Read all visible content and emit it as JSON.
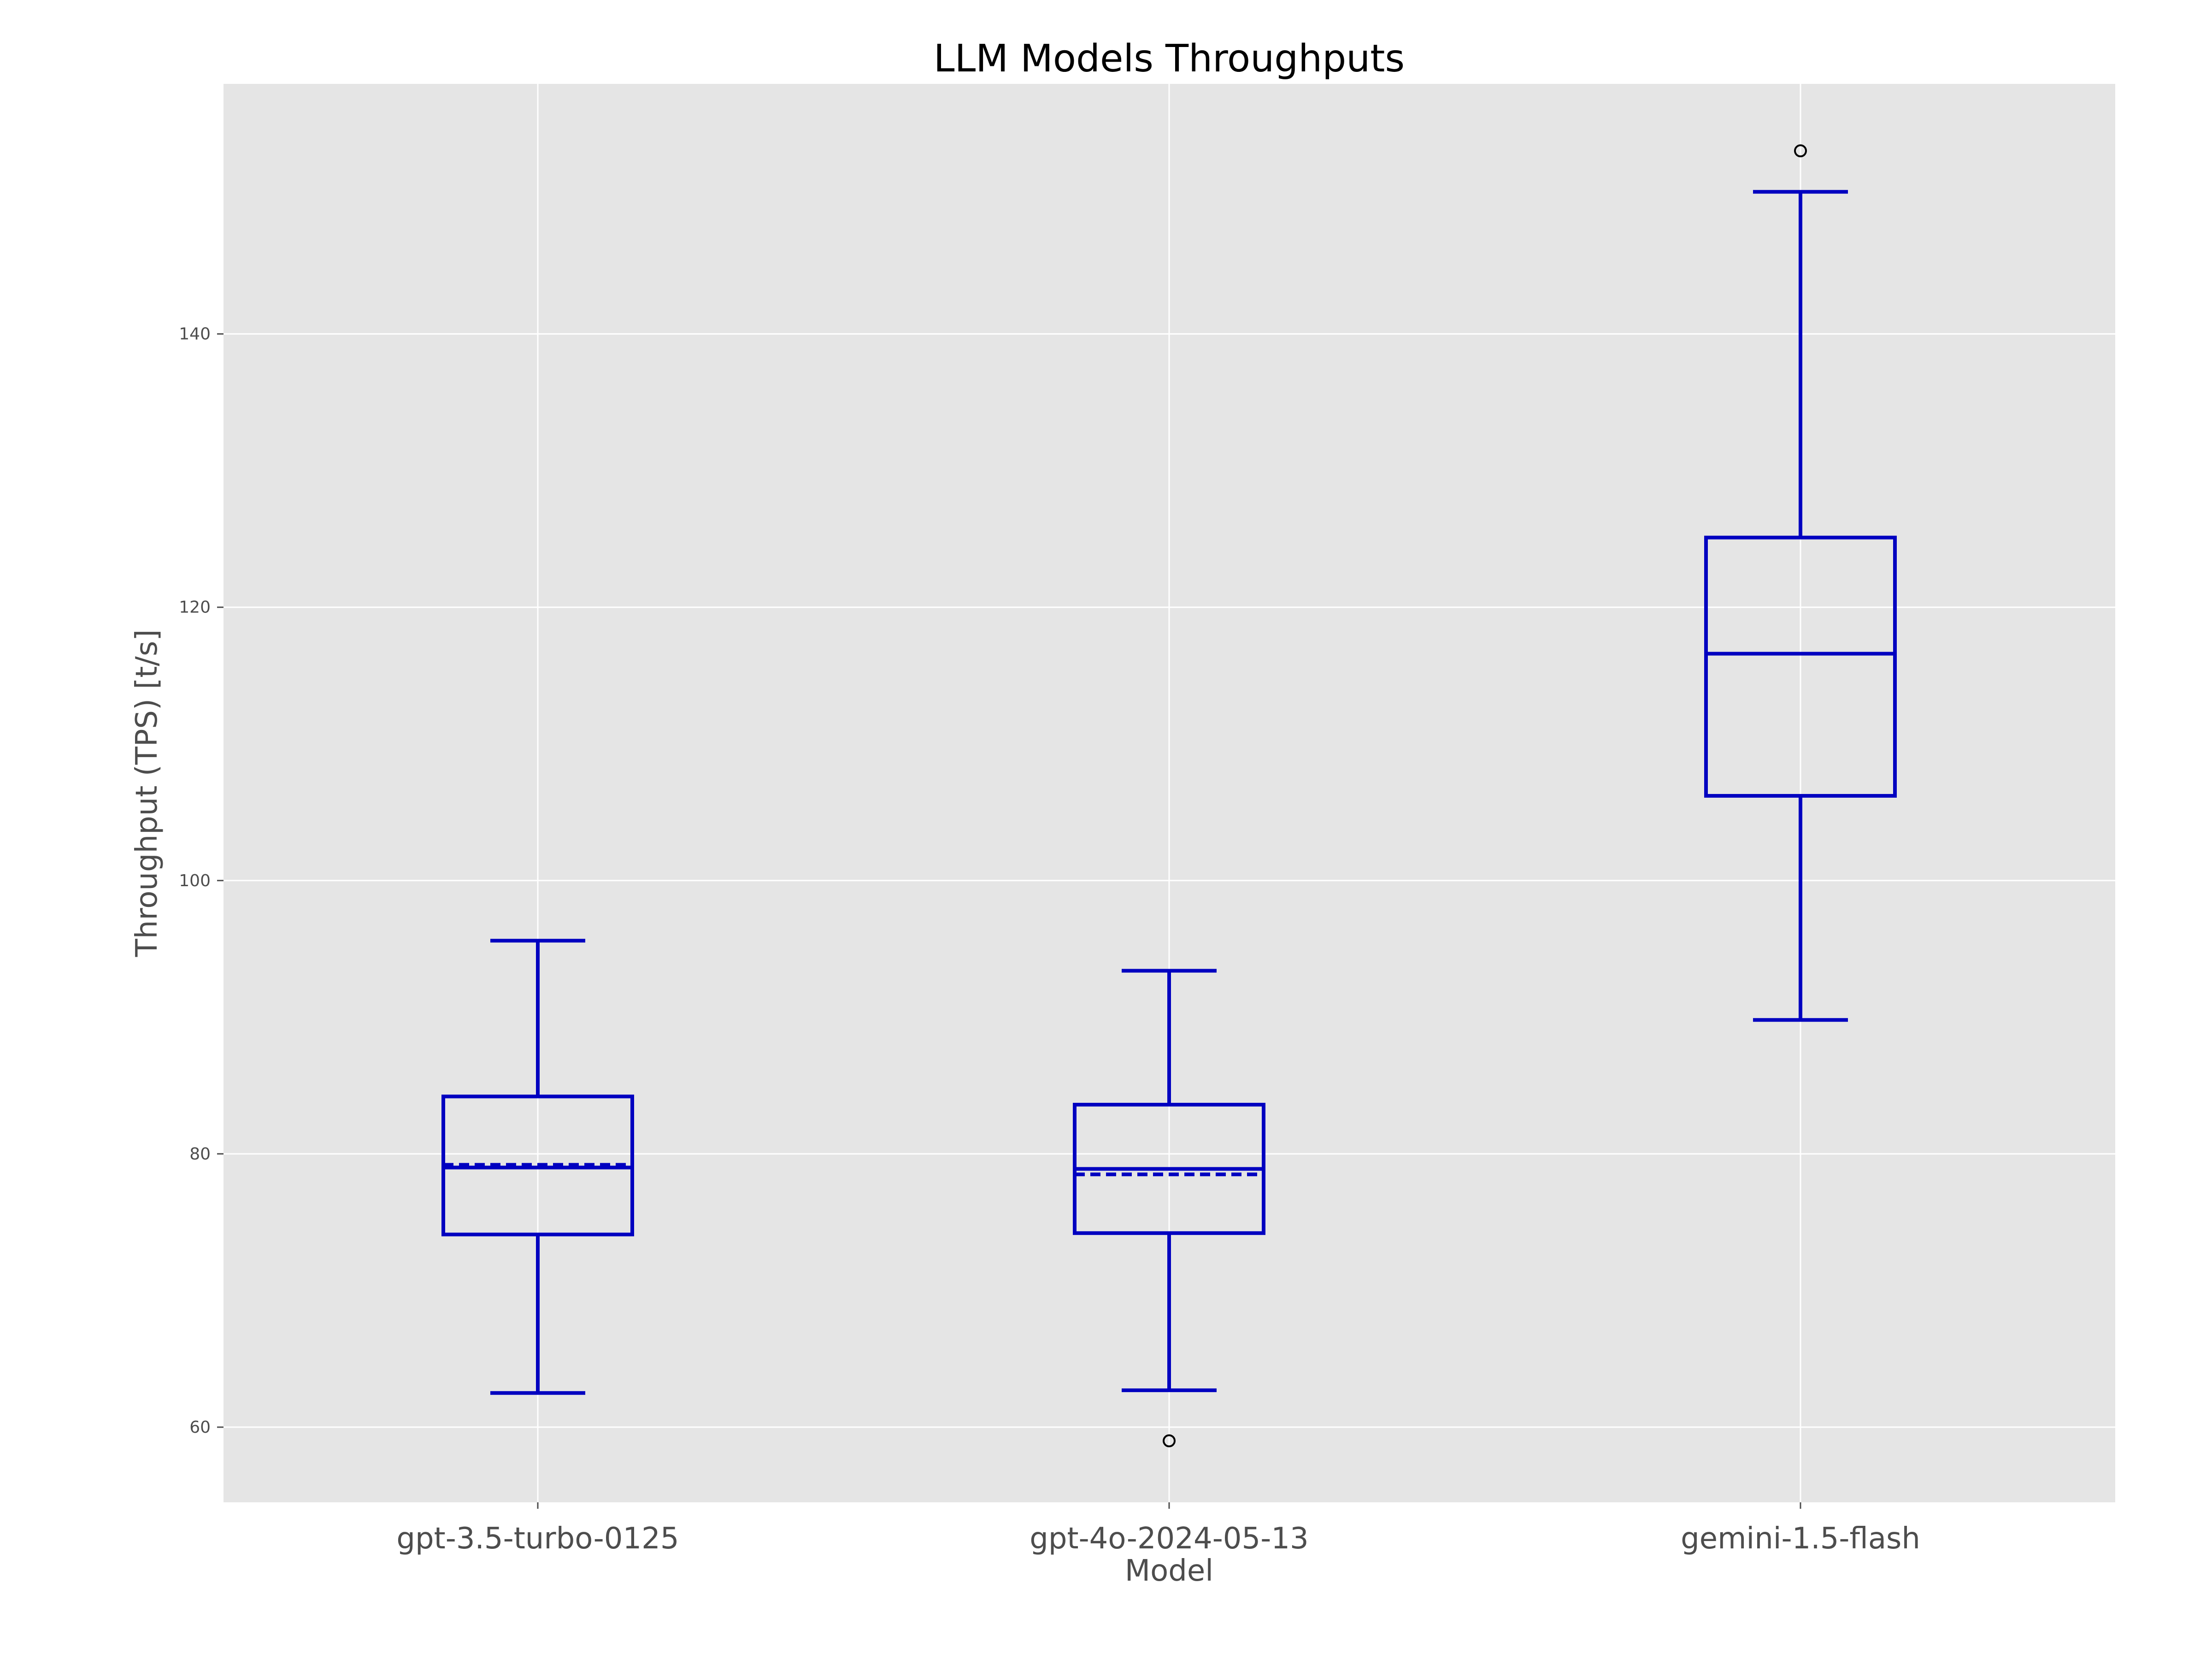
{
  "chart_data": {
    "type": "box",
    "title": "LLM Models Throughputs",
    "xlabel": "Model",
    "ylabel": "Throughput (TPS) [t/s]",
    "ylim": [
      54.5,
      158.3
    ],
    "yticks": [
      60,
      80,
      100,
      120,
      140
    ],
    "grid": true,
    "colors": {
      "box": "#0000c0",
      "background": "#e5e5e5",
      "grid": "#ffffff",
      "outlier": "#000000"
    },
    "categories": [
      "gpt-3.5-turbo-0125",
      "gpt-4o-2024-05-13",
      "gemini-1.5-flash"
    ],
    "boxes": [
      {
        "category": "gpt-3.5-turbo-0125",
        "whisker_low": 62.5,
        "q1": 74.1,
        "median": 79.0,
        "mean": 79.2,
        "q3": 84.2,
        "whisker_high": 95.6,
        "outliers": []
      },
      {
        "category": "gpt-4o-2024-05-13",
        "whisker_low": 62.7,
        "q1": 74.2,
        "median": 78.9,
        "mean": 78.5,
        "q3": 83.6,
        "whisker_high": 93.4,
        "outliers": [
          59.0
        ]
      },
      {
        "category": "gemini-1.5-flash",
        "whisker_low": 89.8,
        "q1": 106.2,
        "median": 116.6,
        "mean": 116.6,
        "q3": 125.1,
        "whisker_high": 150.4,
        "outliers": [
          153.4
        ]
      }
    ]
  }
}
